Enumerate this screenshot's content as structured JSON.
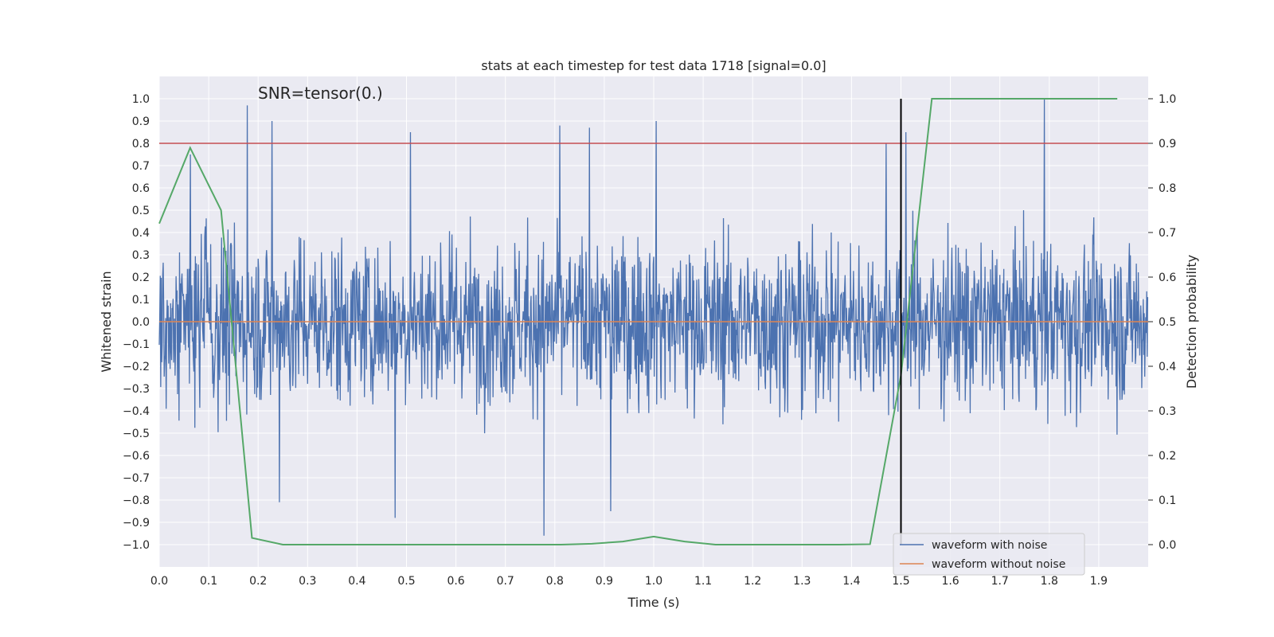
{
  "chart_data": {
    "type": "line",
    "title": "stats at each timestep for test data 1718 [signal=0.0]",
    "annotation": "SNR=tensor(0.)",
    "xlabel": "Time (s)",
    "ylabel": "Whitened strain",
    "y2label": "Detection probability",
    "xlim": [
      0.0,
      2.0
    ],
    "ylim": [
      -1.1,
      1.1
    ],
    "y2lim": [
      -0.05,
      1.05
    ],
    "x_ticks": [
      0.0,
      0.1,
      0.2,
      0.3,
      0.4,
      0.5,
      0.6,
      0.7,
      0.8,
      0.9,
      1.0,
      1.1,
      1.2,
      1.3,
      1.4,
      1.5,
      1.6,
      1.7,
      1.8,
      1.9
    ],
    "x_tick_labels": [
      "0.0",
      "0.1",
      "0.2",
      "0.3",
      "0.4",
      "0.5",
      "0.6",
      "0.7",
      "0.8",
      "0.9",
      "1.0",
      "1.1",
      "1.2",
      "1.3",
      "1.4",
      "1.5",
      "1.6",
      "1.7",
      "1.8",
      "1.9"
    ],
    "y_ticks": [
      1.0,
      0.9,
      0.8,
      0.7,
      0.6,
      0.5,
      0.4,
      0.3,
      0.2,
      0.1,
      0.0,
      -0.1,
      -0.2,
      -0.3,
      -0.4,
      -0.5,
      -0.6,
      -0.7,
      -0.8,
      -0.9,
      -1.0
    ],
    "y_tick_labels": [
      "1.0",
      "0.9",
      "0.8",
      "0.7",
      "0.6",
      "0.5",
      "0.4",
      "0.3",
      "0.2",
      "0.1",
      "0.0",
      "−0.1",
      "−0.2",
      "−0.3",
      "−0.4",
      "−0.5",
      "−0.6",
      "−0.7",
      "−0.8",
      "−0.9",
      "−1.0"
    ],
    "y2_ticks": [
      1.0,
      0.9,
      0.8,
      0.7,
      0.6,
      0.5,
      0.4,
      0.3,
      0.2,
      0.1,
      0.0
    ],
    "y2_tick_labels": [
      "1.0",
      "0.9",
      "0.8",
      "0.7",
      "0.6",
      "0.5",
      "0.4",
      "0.3",
      "0.2",
      "0.1",
      "0.0"
    ],
    "grid": true,
    "legend_placement": "lower-right",
    "series": [
      {
        "name": "waveform with noise",
        "axis": "left",
        "color": "#4c72b0",
        "description": "dense noise, amplitude mostly within ±0.5, peaks near 1.0",
        "peak_points": [
          [
            0.178,
            0.97
          ],
          [
            0.228,
            0.9
          ],
          [
            0.063,
            0.75
          ],
          [
            0.508,
            0.85
          ],
          [
            0.81,
            0.88
          ],
          [
            0.87,
            0.87
          ],
          [
            1.005,
            0.9
          ],
          [
            1.47,
            0.8
          ],
          [
            1.51,
            0.85
          ],
          [
            1.79,
            1.0
          ],
          [
            0.778,
            -0.96
          ],
          [
            0.477,
            -0.88
          ],
          [
            0.243,
            -0.81
          ],
          [
            0.913,
            -0.85
          ]
        ]
      },
      {
        "name": "waveform without noise",
        "axis": "left",
        "color": "#dd8452",
        "x": [
          0.0,
          2.0
        ],
        "y": [
          0.0,
          0.0
        ]
      },
      {
        "name": "detection probability",
        "axis": "right",
        "color": "#55a868",
        "x": [
          0.0,
          0.0625,
          0.125,
          0.1875,
          0.25,
          0.3125,
          0.375,
          0.4375,
          0.5,
          0.5625,
          0.625,
          0.6875,
          0.75,
          0.8125,
          0.875,
          0.9375,
          1.0,
          1.0625,
          1.125,
          1.1875,
          1.25,
          1.3125,
          1.375,
          1.4375,
          1.5,
          1.5625,
          1.625,
          1.6875,
          1.75,
          1.8125,
          1.875,
          1.9375
        ],
        "y": [
          0.72,
          0.89,
          0.75,
          0.015,
          0.0,
          0.0,
          0.0,
          0.0,
          0.0,
          0.0,
          0.0,
          0.0,
          0.0,
          0.0,
          0.002,
          0.007,
          0.018,
          0.007,
          0.0,
          0.0,
          0.0,
          0.0,
          0.0,
          0.001,
          0.38,
          1.0,
          1.0,
          1.0,
          1.0,
          1.0,
          1.0,
          1.0
        ]
      }
    ],
    "threshold": {
      "axis": "right",
      "value": 0.9,
      "color": "#c44e52"
    },
    "marker_line": {
      "x": 1.5,
      "ymin": -1.0,
      "ymax": 1.0,
      "color": "#000000"
    },
    "legend": [
      "waveform with noise",
      "waveform without noise"
    ]
  }
}
